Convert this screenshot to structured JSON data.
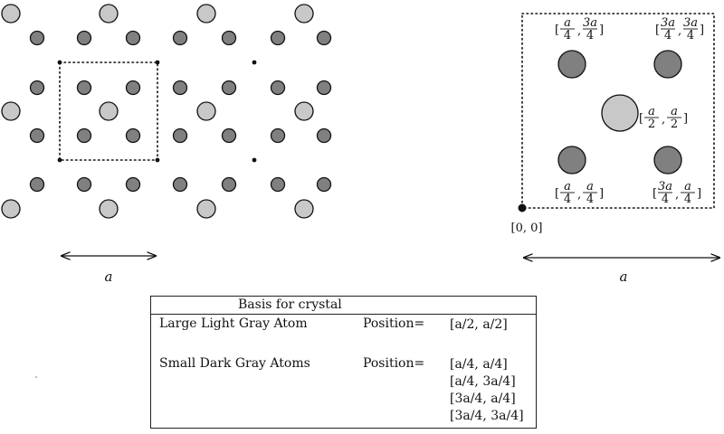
{
  "diagram": {
    "lattice_label": "a",
    "cell_label": "a",
    "origin_label": "[0, 0]",
    "site_labels": {
      "top_left": {
        "left": "a",
        "left_den": "4",
        "right": "3a",
        "right_den": "4"
      },
      "top_right": {
        "left": "3a",
        "left_den": "4",
        "right": "3a",
        "right_den": "4"
      },
      "center": {
        "left": "a",
        "left_den": "2",
        "right": "a",
        "right_den": "2"
      },
      "bot_left": {
        "left": "a",
        "left_den": "4",
        "right": "a",
        "right_den": "4"
      },
      "bot_right": {
        "left": "3a",
        "left_den": "4",
        "right": "a",
        "right_den": "4"
      }
    },
    "colors": {
      "large_atom": "#c8c8c8",
      "small_atom": "#808080"
    }
  },
  "basis": {
    "title": "Basis for crystal",
    "rows": [
      {
        "name": "Large Light Gray Atom",
        "position_label": "Position=",
        "positions": [
          "[a/2, a/2]"
        ]
      },
      {
        "name": "Small Dark Gray Atoms",
        "position_label": "Position=",
        "positions": [
          "[a/4, a/4]",
          "[a/4, 3a/4]",
          "[3a/4, a/4]",
          "[3a/4, 3a/4]"
        ]
      }
    ]
  }
}
